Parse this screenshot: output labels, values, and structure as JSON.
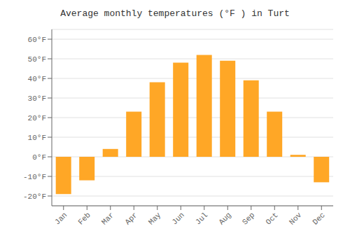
{
  "chart_data": {
    "type": "bar",
    "title": "Average monthly temperatures (°F ) in Turt",
    "categories": [
      "Jan",
      "Feb",
      "Mar",
      "Apr",
      "May",
      "Jun",
      "Jul",
      "Aug",
      "Sep",
      "Oct",
      "Nov",
      "Dec"
    ],
    "values": [
      -19,
      -12,
      4,
      23,
      38,
      48,
      52,
      49,
      39,
      23,
      1,
      -13
    ],
    "color": "#FFA726",
    "ylim": [
      -25,
      65
    ],
    "yticks": [
      {
        "value": -20,
        "label": "-20°F"
      },
      {
        "value": -10,
        "label": "-10°F"
      },
      {
        "value": 0,
        "label": "0°F"
      },
      {
        "value": 10,
        "label": "10°F"
      },
      {
        "value": 20,
        "label": "20°F"
      },
      {
        "value": 30,
        "label": "30°F"
      },
      {
        "value": 40,
        "label": "40°F"
      },
      {
        "value": 50,
        "label": "50°F"
      },
      {
        "value": 60,
        "label": "60°F"
      }
    ],
    "grid": true
  }
}
